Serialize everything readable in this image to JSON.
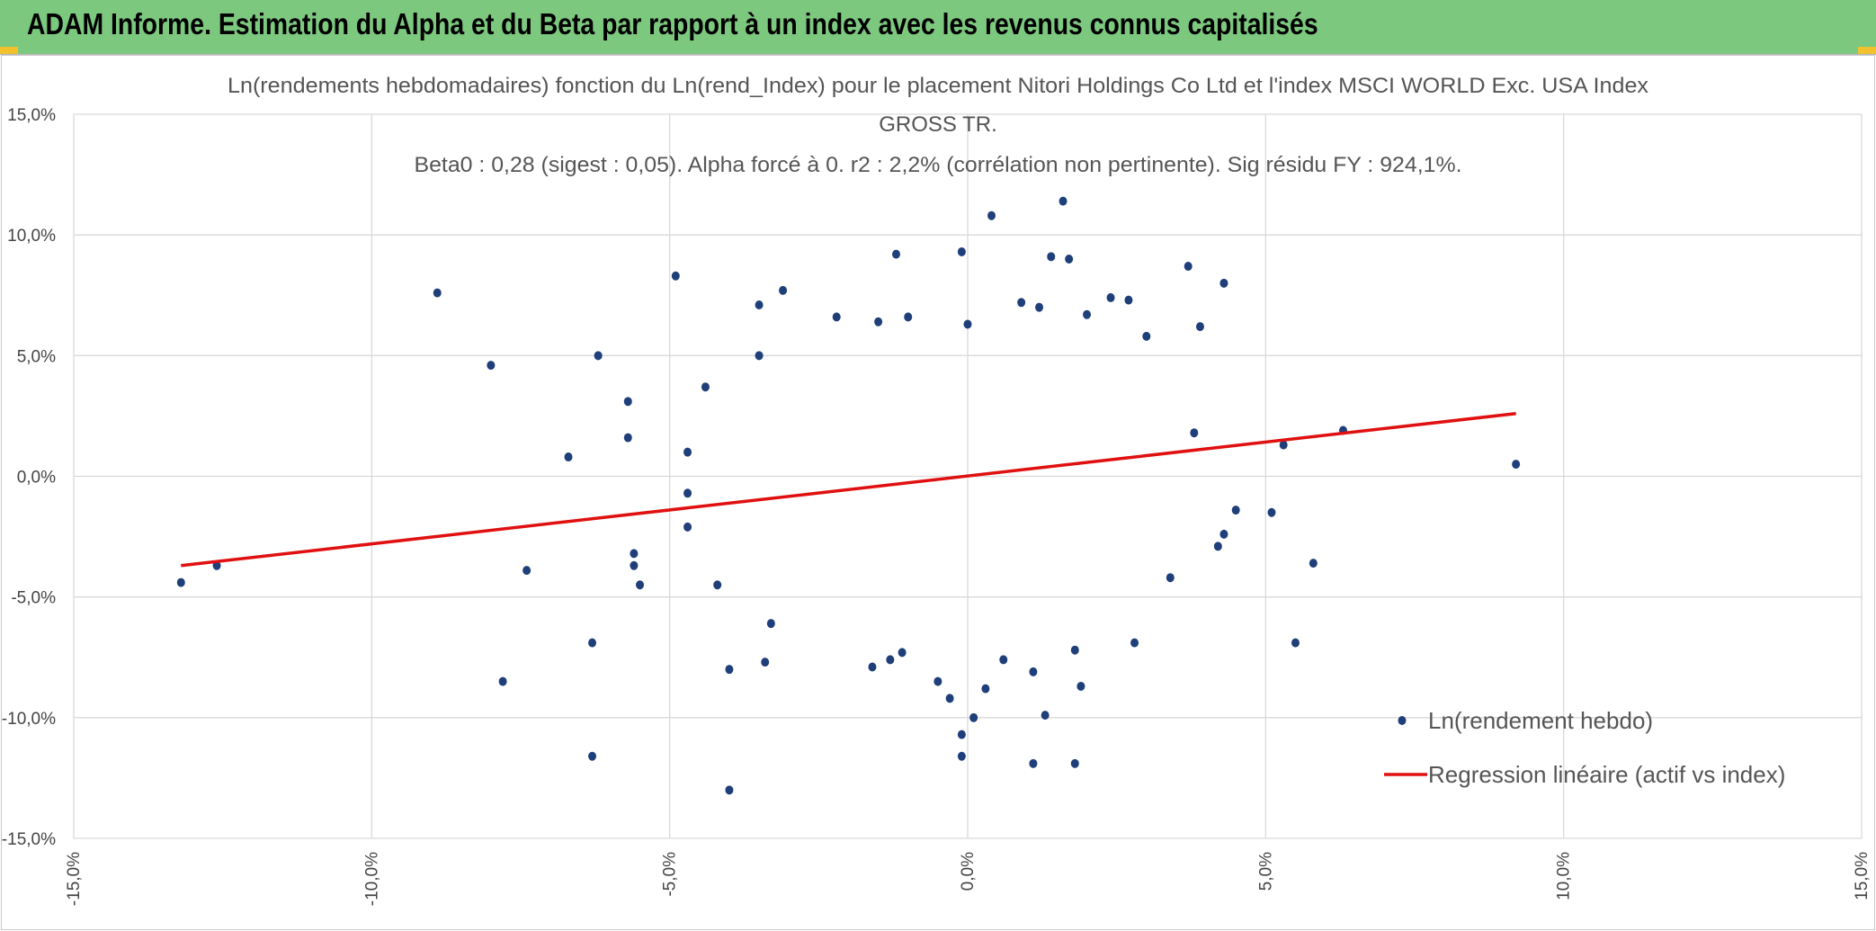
{
  "header": {
    "title": "ADAM Informe. Estimation du Alpha et du Beta par rapport à un index avec les revenus connus capitalisés"
  },
  "colors": {
    "banner": "#7dc87f",
    "points": "#1f3f7a",
    "regression": "#e01010",
    "grid": "#d9d9d9"
  },
  "chart_data": {
    "type": "scatter",
    "title_lines": [
      "Ln(rendements hebdomadaires) fonction du Ln(rend_Index) pour le placement Nitori Holdings Co Ltd et l'index MSCI WORLD Exc. USA Index",
      "GROSS TR.",
      "Beta0 : 0,28 (sigest : 0,05). Alpha forcé à 0. r2 : 2,2% (corrélation non pertinente). Sig résidu FY : 924,1%."
    ],
    "xlim": [
      -0.15,
      0.15
    ],
    "ylim": [
      -0.15,
      0.15
    ],
    "x_ticks": [
      -0.15,
      -0.1,
      -0.05,
      0.0,
      0.05,
      0.1,
      0.15
    ],
    "x_tick_labels": [
      "-15,0%",
      "-10,0%",
      "-5,0%",
      "0,0%",
      "5,0%",
      "10,0%",
      "15,0%"
    ],
    "y_ticks": [
      0.15,
      0.1,
      0.05,
      0.0,
      -0.05,
      -0.1,
      -0.15
    ],
    "y_tick_labels": [
      "15,0%",
      "10,0%",
      "5,0%",
      "0,0%",
      "-5,0%",
      "-10,0%",
      "-15,0%"
    ],
    "grid": true,
    "legend": [
      {
        "label": "Ln(rendement hebdo)",
        "kind": "marker"
      },
      {
        "label": "Regression linéaire (actif vs index)",
        "kind": "line"
      }
    ],
    "regression": {
      "beta": 0.28,
      "alpha": 0.0,
      "x_start": -0.132,
      "x_end": 0.092,
      "y_start": -0.037,
      "y_end": 0.026
    },
    "points": [
      [
        -0.132,
        -0.044
      ],
      [
        -0.126,
        -0.037
      ],
      [
        -0.089,
        0.076
      ],
      [
        -0.08,
        0.046
      ],
      [
        -0.078,
        -0.085
      ],
      [
        -0.074,
        -0.039
      ],
      [
        -0.067,
        0.008
      ],
      [
        -0.062,
        0.05
      ],
      [
        -0.063,
        -0.069
      ],
      [
        -0.063,
        -0.116
      ],
      [
        -0.057,
        0.031
      ],
      [
        -0.057,
        0.016
      ],
      [
        -0.056,
        -0.037
      ],
      [
        -0.055,
        -0.045
      ],
      [
        -0.056,
        -0.032
      ],
      [
        -0.049,
        0.083
      ],
      [
        -0.047,
        0.01
      ],
      [
        -0.047,
        -0.007
      ],
      [
        -0.047,
        -0.021
      ],
      [
        -0.044,
        0.037
      ],
      [
        -0.04,
        -0.08
      ],
      [
        -0.04,
        -0.13
      ],
      [
        -0.042,
        -0.045
      ],
      [
        -0.035,
        0.071
      ],
      [
        -0.035,
        0.05
      ],
      [
        -0.031,
        0.077
      ],
      [
        -0.034,
        -0.077
      ],
      [
        -0.033,
        -0.061
      ],
      [
        0.011,
        -0.119
      ],
      [
        0.018,
        -0.119
      ],
      [
        -0.001,
        -0.116
      ],
      [
        -0.001,
        -0.107
      ],
      [
        0.001,
        -0.1
      ],
      [
        0.013,
        -0.099
      ],
      [
        0.019,
        -0.087
      ],
      [
        0.004,
        0.108
      ],
      [
        0.016,
        0.114
      ],
      [
        -0.001,
        0.093
      ],
      [
        -0.012,
        0.092
      ],
      [
        0.014,
        0.091
      ],
      [
        0.017,
        0.09
      ],
      [
        0.043,
        0.08
      ],
      [
        0.037,
        0.087
      ],
      [
        0.039,
        0.062
      ],
      [
        0.045,
        -0.014
      ],
      [
        0.051,
        -0.015
      ],
      [
        0.053,
        0.013
      ],
      [
        0.063,
        0.019
      ],
      [
        0.058,
        -0.036
      ],
      [
        0.055,
        -0.069
      ],
      [
        0.092,
        0.005
      ],
      [
        0.042,
        -0.029
      ],
      [
        0.043,
        -0.024
      ],
      [
        0.038,
        0.018
      ],
      [
        0.034,
        -0.042
      ],
      [
        0.028,
        -0.069
      ],
      [
        0.003,
        -0.088
      ],
      [
        0.006,
        -0.076
      ],
      [
        -0.003,
        -0.092
      ],
      [
        -0.005,
        -0.085
      ],
      [
        0.011,
        -0.081
      ],
      [
        0.018,
        -0.072
      ],
      [
        -0.016,
        -0.079
      ],
      [
        -0.013,
        -0.076
      ],
      [
        -0.011,
        -0.073
      ],
      [
        0.024,
        0.074
      ],
      [
        0.027,
        0.073
      ],
      [
        -0.022,
        0.066
      ],
      [
        -0.01,
        0.066
      ],
      [
        -0.015,
        0.064
      ],
      [
        0.009,
        0.072
      ],
      [
        0.012,
        0.07
      ],
      [
        0.0,
        0.063
      ],
      [
        0.02,
        0.067
      ],
      [
        0.03,
        0.058
      ]
    ]
  }
}
